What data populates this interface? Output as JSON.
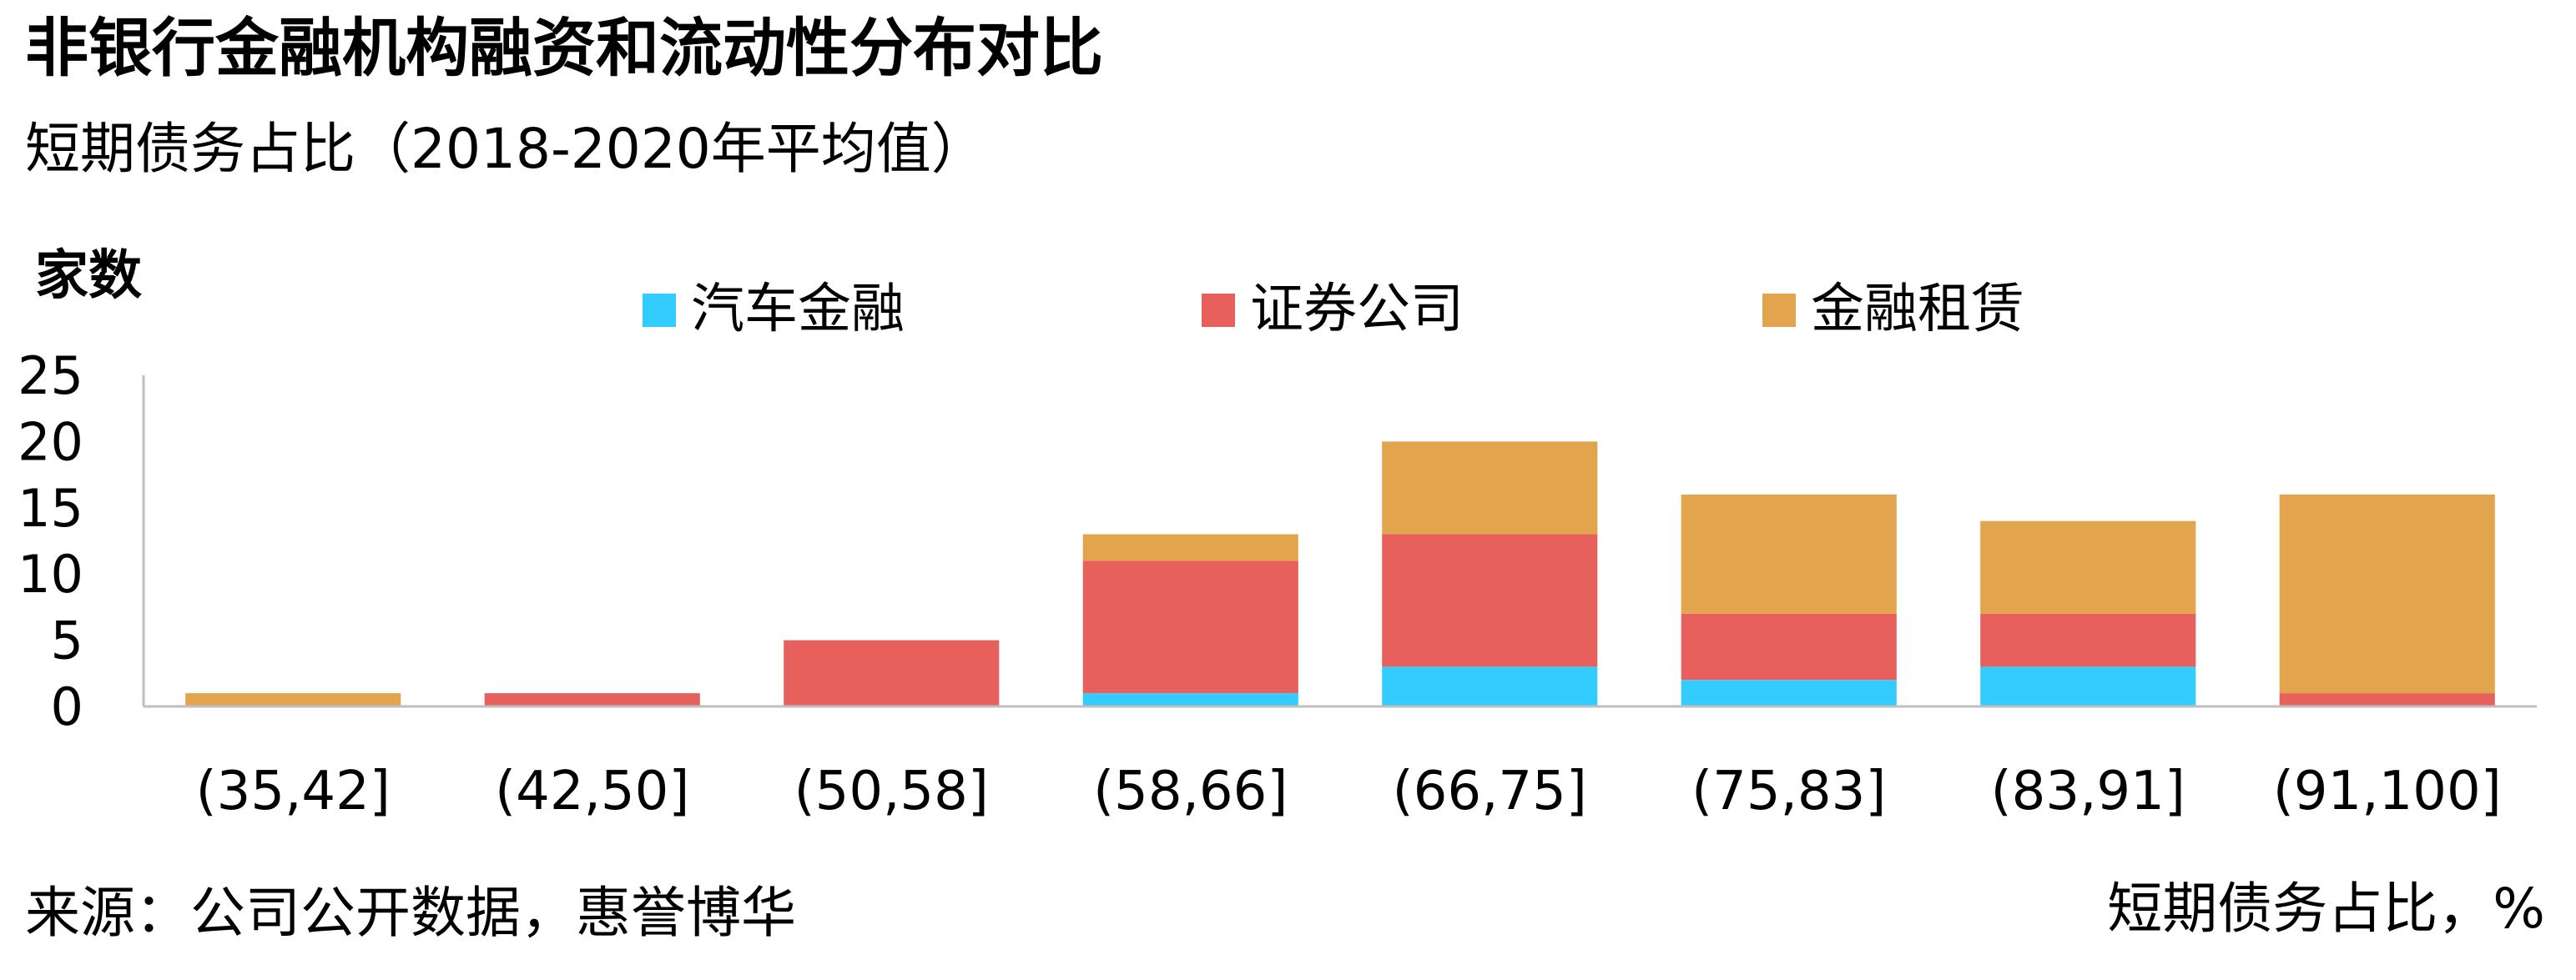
{
  "title": "非银行金融机构融资和流动性分布对比",
  "subtitle": "短期债务占比（2018-2020年平均值）",
  "source": "来源：公司公开数据，惠誉博华",
  "chart_data": {
    "type": "bar",
    "stacked": true,
    "ylabel": "家数",
    "xlabel": "短期债务占比，%",
    "ylim": [
      0,
      25
    ],
    "yticks": [
      0,
      5,
      10,
      15,
      20,
      25
    ],
    "grid": false,
    "legend_position": "top",
    "categories": [
      "(35,42]",
      "(42,50]",
      "(50,58]",
      "(58,66]",
      "(66,75]",
      "(75,83]",
      "(83,91]",
      "(91,100]"
    ],
    "series": [
      {
        "name": "汽车金融",
        "color": "#33CCFF",
        "values": [
          0,
          0,
          0,
          1,
          3,
          2,
          3,
          0
        ]
      },
      {
        "name": "证券公司",
        "color": "#E8605C",
        "values": [
          0,
          1,
          5,
          10,
          10,
          5,
          4,
          1
        ]
      },
      {
        "name": "金融租赁",
        "color": "#E3A44E",
        "values": [
          1,
          0,
          0,
          2,
          7,
          9,
          7,
          15
        ]
      }
    ]
  }
}
